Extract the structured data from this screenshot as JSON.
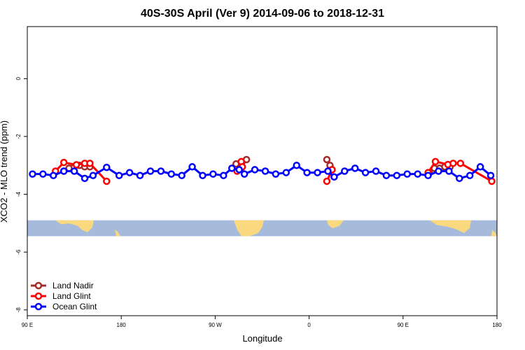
{
  "chart_data": {
    "type": "line",
    "title": "40S-30S April (Ver 9)   2014-09-06 to 2018-12-31",
    "xlabel": "Longitude",
    "ylabel": "XCO2 - MLO trend (ppm)",
    "xlim": [
      90,
      540
    ],
    "ylim": [
      -8.2,
      1.8
    ],
    "x_ticks": [
      {
        "value": 90,
        "label": "90 E"
      },
      {
        "value": 180,
        "label": "180"
      },
      {
        "value": 270,
        "label": "90 W"
      },
      {
        "value": 360,
        "label": "0"
      },
      {
        "value": 450,
        "label": "90 E"
      },
      {
        "value": 540,
        "label": "180"
      }
    ],
    "y_ticks": [
      {
        "value": 0,
        "label": "0"
      },
      {
        "value": -2,
        "label": "-2"
      },
      {
        "value": -4,
        "label": "-4"
      },
      {
        "value": -6,
        "label": "-6"
      },
      {
        "value": -8,
        "label": "-8"
      }
    ],
    "legend": {
      "position": "bottom-left",
      "entries": [
        "Land Nadir",
        "Land Glint",
        "Ocean Glint"
      ]
    },
    "colors": {
      "land_nadir": "#a52a2a",
      "land_glint": "#ff0000",
      "ocean_glint": "#0000ff",
      "map_ocean": "#a6bbdb",
      "map_land": "#f9d87f"
    },
    "map_band": {
      "ymin": -5.45,
      "ymax": -4.9
    },
    "series": [
      {
        "name": "Land Nadir",
        "color": "#a52a2a",
        "segments": [
          [
            [
              125,
              -3.2
            ],
            [
              130,
              -3.1
            ],
            [
              135,
              -3.05
            ],
            [
              140,
              -3.0
            ],
            [
              145,
              -3.05
            ],
            [
              150,
              -3.05
            ]
          ],
          [
            [
              290,
              -2.95
            ],
            [
              295,
              -3.1
            ],
            [
              300,
              -2.8
            ]
          ],
          [
            [
              377,
              -2.8
            ],
            [
              380,
              -3.0
            ],
            [
              382,
              -3.15
            ]
          ],
          [
            [
              475,
              -3.25
            ],
            [
              480,
              -3.1
            ],
            [
              485,
              -3.1
            ],
            [
              490,
              -3.05
            ],
            [
              495,
              -3.05
            ]
          ]
        ]
      },
      {
        "name": "Land Glint",
        "color": "#ff0000",
        "segments": [
          [
            [
              117,
              -3.2
            ],
            [
              125,
              -2.9
            ],
            [
              137,
              -2.98
            ],
            [
              145,
              -2.93
            ],
            [
              150,
              -2.93
            ],
            [
              166,
              -3.55
            ]
          ],
          [
            [
              291,
              -3.2
            ],
            [
              295,
              -2.87
            ],
            [
              296,
              -3.05
            ]
          ],
          [
            [
              377,
              -3.55
            ],
            [
              382,
              -3.15
            ]
          ],
          [
            [
              474,
              -3.25
            ],
            [
              481,
              -2.87
            ],
            [
              493,
              -2.97
            ],
            [
              498,
              -2.93
            ],
            [
              505,
              -2.93
            ],
            [
              535,
              -3.55
            ]
          ]
        ]
      },
      {
        "name": "Ocean Glint",
        "color": "#0000ff",
        "segments": [
          [
            [
              95,
              -3.3
            ],
            [
              105,
              -3.3
            ],
            [
              115,
              -3.35
            ],
            [
              125,
              -3.2
            ],
            [
              135,
              -3.2
            ],
            [
              145,
              -3.45
            ],
            [
              153,
              -3.35
            ],
            [
              166,
              -3.07
            ],
            [
              178,
              -3.35
            ],
            [
              188,
              -3.25
            ],
            [
              198,
              -3.35
            ],
            [
              208,
              -3.2
            ],
            [
              218,
              -3.2
            ],
            [
              228,
              -3.3
            ],
            [
              238,
              -3.35
            ],
            [
              248,
              -3.05
            ],
            [
              258,
              -3.35
            ],
            [
              268,
              -3.3
            ],
            [
              278,
              -3.35
            ],
            [
              286,
              -3.1
            ],
            [
              293,
              -3.15
            ],
            [
              298,
              -3.3
            ],
            [
              308,
              -3.15
            ],
            [
              318,
              -3.2
            ],
            [
              328,
              -3.3
            ],
            [
              338,
              -3.25
            ],
            [
              348,
              -3.0
            ],
            [
              358,
              -3.25
            ],
            [
              368,
              -3.25
            ],
            [
              378,
              -3.2
            ],
            [
              384,
              -3.4
            ],
            [
              394,
              -3.2
            ],
            [
              404,
              -3.1
            ],
            [
              414,
              -3.25
            ],
            [
              424,
              -3.2
            ],
            [
              434,
              -3.35
            ],
            [
              444,
              -3.35
            ],
            [
              454,
              -3.3
            ],
            [
              464,
              -3.3
            ],
            [
              474,
              -3.35
            ],
            [
              484,
              -3.2
            ],
            [
              494,
              -3.2
            ],
            [
              504,
              -3.45
            ],
            [
              514,
              -3.35
            ],
            [
              524,
              -3.05
            ],
            [
              534,
              -3.35
            ]
          ]
        ]
      }
    ]
  }
}
